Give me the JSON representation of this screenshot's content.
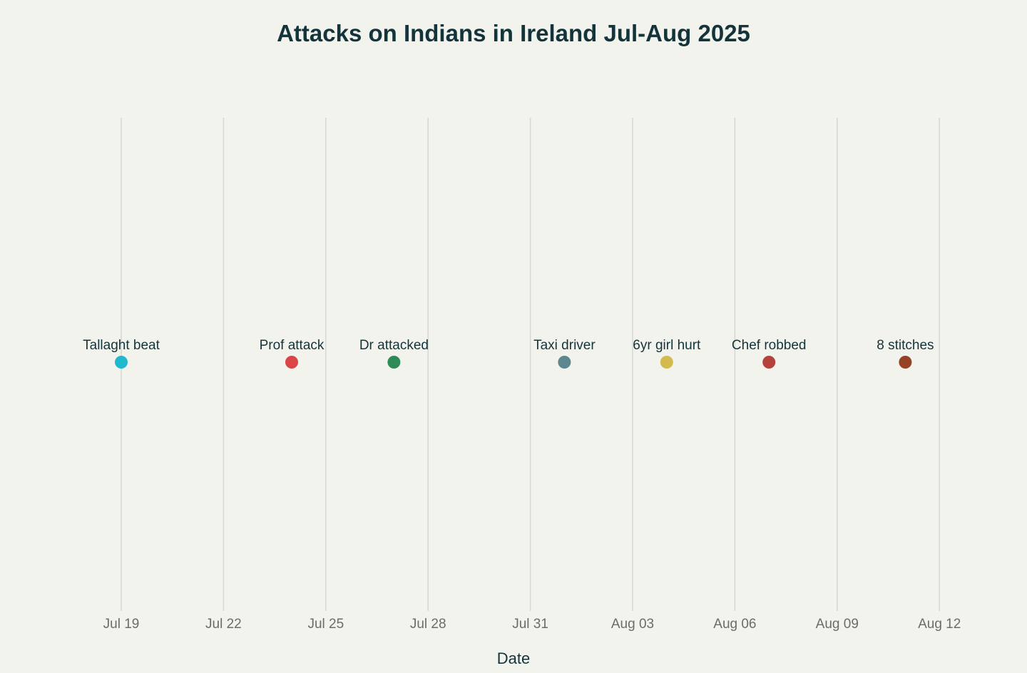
{
  "chart_data": {
    "type": "scatter",
    "title": "Attacks on Indians in Ireland Jul-Aug 2025",
    "xlabel": "Date",
    "ylabel": "",
    "x_ticks": [
      "2025-07-19",
      "2025-07-22",
      "2025-07-25",
      "2025-07-28",
      "2025-07-31",
      "2025-08-03",
      "2025-08-06",
      "2025-08-09",
      "2025-08-12"
    ],
    "x_tick_labels": [
      "Jul 19",
      "Jul 22",
      "Jul 25",
      "Jul 28",
      "Jul 31",
      "Aug 03",
      "Aug 06",
      "Aug 09",
      "Aug 12"
    ],
    "xlim": [
      "2025-07-17",
      "2025-08-13"
    ],
    "y_axis_visible": false,
    "grid": "vertical",
    "points": [
      {
        "date": "2025-07-19",
        "y": 1,
        "label": "Tallaght beat",
        "color": "#1fb8cd"
      },
      {
        "date": "2025-07-24",
        "y": 1,
        "label": "Prof attack",
        "color": "#db4545"
      },
      {
        "date": "2025-07-27",
        "y": 1,
        "label": "Dr attacked",
        "color": "#2e8b57"
      },
      {
        "date": "2025-08-01",
        "y": 1,
        "label": "Taxi driver",
        "color": "#5d878f"
      },
      {
        "date": "2025-08-04",
        "y": 1,
        "label": "6yr girl hurt",
        "color": "#d2ba4c"
      },
      {
        "date": "2025-08-07",
        "y": 1,
        "label": "Chef robbed",
        "color": "#b4413c"
      },
      {
        "date": "2025-08-11",
        "y": 1,
        "label": "8 stitches",
        "color": "#964325"
      }
    ]
  }
}
